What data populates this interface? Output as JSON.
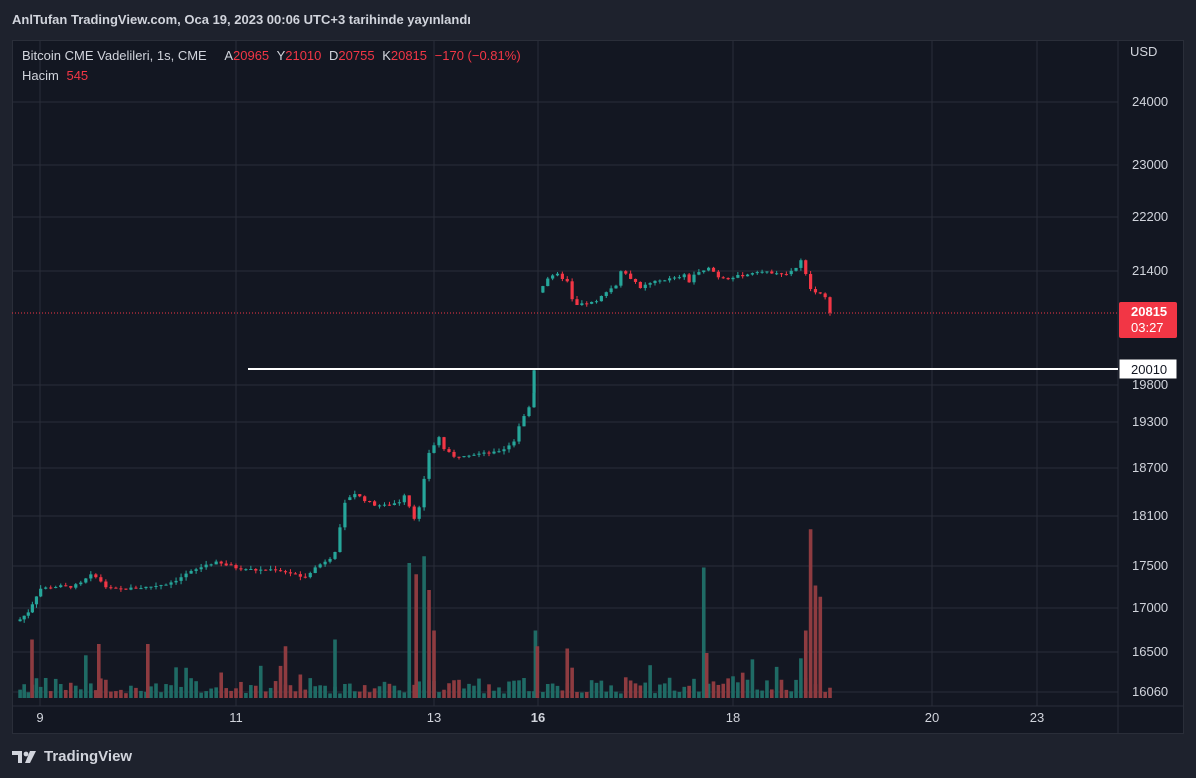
{
  "header": {
    "publisher_line": "AnlTufan TradingView.com, Oca 19, 2023 00:06 UTC+3 tarihinde yayınlandı"
  },
  "legend": {
    "symbol": "Bitcoin CME Vadelileri, 1s, CME",
    "open_label": "A",
    "open": "20965",
    "high_label": "Y",
    "high": "21010",
    "low_label": "D",
    "low": "20755",
    "close_label": "K",
    "close": "20815",
    "change": "−170 (−0.81%)",
    "volume_label": "Hacim",
    "volume": "545"
  },
  "price_axis": {
    "currency": "USD",
    "current_price_label": "20815",
    "countdown": "03:27",
    "level_label": "20010"
  },
  "colors": {
    "background": "#131722",
    "up": "#26a69a",
    "down": "#f23645",
    "up_volume": "#1f6b65",
    "down_volume": "#8e3b40",
    "grid": "#2a2e39",
    "level_line": "#ffffff"
  },
  "footer": {
    "brand": "TradingView",
    "logo_icon": "tradingview-logo-icon"
  },
  "chart_data": {
    "type": "candlestick",
    "price_ticks": [
      16060,
      16500,
      17000,
      17500,
      18100,
      18700,
      19300,
      19800,
      21400,
      22200,
      23000,
      24000
    ],
    "x_ticks": [
      {
        "label": "9",
        "x": 9
      },
      {
        "label": "11",
        "x": 11
      },
      {
        "label": "13",
        "x": 13
      },
      {
        "label": "16",
        "x": 16
      },
      {
        "label": "18",
        "x": 18
      },
      {
        "label": "20",
        "x": 20
      },
      {
        "label": "23",
        "x": 23
      }
    ],
    "horizontal_level": 20010,
    "last_price": 20815,
    "segments": [
      {
        "x_start": 8.7,
        "x_end": 10.9,
        "points": [
          [
            0,
            16850
          ],
          [
            0.05,
            16870
          ],
          [
            0.15,
            16950
          ],
          [
            0.3,
            17230
          ],
          [
            0.5,
            17260
          ],
          [
            0.6,
            17250
          ],
          [
            0.7,
            17280
          ],
          [
            0.75,
            17320
          ],
          [
            0.8,
            17390
          ],
          [
            0.88,
            17380
          ],
          [
            0.95,
            17260
          ],
          [
            1.05,
            17220
          ],
          [
            1.2,
            17230
          ],
          [
            1.4,
            17250
          ],
          [
            1.6,
            17290
          ],
          [
            1.7,
            17340
          ],
          [
            1.8,
            17410
          ],
          [
            1.9,
            17460
          ],
          [
            2.0,
            17520
          ],
          [
            2.1,
            17540
          ],
          [
            2.2,
            17510
          ]
        ]
      },
      {
        "x_start": 10.9,
        "x_end": 12.1,
        "points": [
          [
            0,
            17520
          ],
          [
            0.1,
            17480
          ],
          [
            0.3,
            17450
          ],
          [
            0.5,
            17460
          ],
          [
            0.6,
            17430
          ],
          [
            0.7,
            17400
          ],
          [
            0.75,
            17360
          ],
          [
            0.8,
            17380
          ],
          [
            0.9,
            17480
          ],
          [
            1.0,
            17560
          ],
          [
            1.05,
            17600
          ],
          [
            1.1,
            17680
          ],
          [
            1.15,
            17950
          ],
          [
            1.2,
            18250
          ]
        ]
      },
      {
        "x_start": 12.1,
        "x_end": 14.0,
        "points": [
          [
            0,
            18300
          ],
          [
            0.1,
            18380
          ],
          [
            0.2,
            18300
          ],
          [
            0.3,
            18240
          ],
          [
            0.4,
            18230
          ],
          [
            0.5,
            18260
          ],
          [
            0.55,
            18280
          ],
          [
            0.6,
            18370
          ],
          [
            0.7,
            18080
          ],
          [
            0.75,
            18200
          ],
          [
            0.8,
            18550
          ],
          [
            0.85,
            18900
          ],
          [
            0.95,
            19100
          ],
          [
            1.0,
            18950
          ],
          [
            1.1,
            18840
          ],
          [
            1.2,
            18870
          ],
          [
            1.3,
            18880
          ],
          [
            1.4,
            18890
          ],
          [
            1.5,
            18900
          ],
          [
            1.6,
            18950
          ],
          [
            1.7,
            19050
          ],
          [
            1.75,
            19250
          ],
          [
            1.85,
            19500
          ],
          [
            1.9,
            19700
          ],
          [
            1.95,
            20000
          ]
        ]
      },
      {
        "x_start": 16.0,
        "x_end": 19.0,
        "points": [
          [
            0,
            21100
          ],
          [
            0.1,
            21300
          ],
          [
            0.2,
            21350
          ],
          [
            0.3,
            21250
          ],
          [
            0.35,
            21000
          ],
          [
            0.4,
            20920
          ],
          [
            0.5,
            20950
          ],
          [
            0.6,
            20970
          ],
          [
            0.7,
            21120
          ],
          [
            0.8,
            21200
          ],
          [
            0.85,
            21400
          ],
          [
            0.9,
            21350
          ],
          [
            1.0,
            21250
          ],
          [
            1.05,
            21150
          ],
          [
            1.1,
            21200
          ],
          [
            1.2,
            21250
          ],
          [
            1.3,
            21280
          ],
          [
            1.4,
            21300
          ],
          [
            1.5,
            21340
          ],
          [
            1.55,
            21250
          ],
          [
            1.6,
            21350
          ],
          [
            1.7,
            21400
          ],
          [
            1.75,
            21460
          ],
          [
            1.85,
            21320
          ],
          [
            1.95,
            21300
          ],
          [
            2.05,
            21330
          ],
          [
            2.15,
            21350
          ],
          [
            2.25,
            21400
          ],
          [
            2.35,
            21380
          ],
          [
            2.45,
            21380
          ],
          [
            2.55,
            21360
          ],
          [
            2.65,
            21450
          ],
          [
            2.7,
            21550
          ],
          [
            2.75,
            21350
          ],
          [
            2.8,
            21150
          ],
          [
            2.85,
            21100
          ],
          [
            2.95,
            21050
          ],
          [
            3.0,
            20815
          ]
        ]
      }
    ],
    "volume_spikes": [
      {
        "x": 12.75,
        "v": 600,
        "dir": "up"
      },
      {
        "x": 12.82,
        "v": 550,
        "dir": "down"
      },
      {
        "x": 12.9,
        "v": 630,
        "dir": "up"
      },
      {
        "x": 12.95,
        "v": 480,
        "dir": "down"
      },
      {
        "x": 13.0,
        "v": 300,
        "dir": "down"
      },
      {
        "x": 14.7,
        "v": 300,
        "dir": "up"
      },
      {
        "x": 17.7,
        "v": 580,
        "dir": "up"
      },
      {
        "x": 17.73,
        "v": 200,
        "dir": "down"
      },
      {
        "x": 18.8,
        "v": 750,
        "dir": "down"
      },
      {
        "x": 18.85,
        "v": 500,
        "dir": "down"
      },
      {
        "x": 18.9,
        "v": 450,
        "dir": "down"
      },
      {
        "x": 18.75,
        "v": 300,
        "dir": "down"
      },
      {
        "x": 8.9,
        "v": 260,
        "dir": "down"
      },
      {
        "x": 9.6,
        "v": 240,
        "dir": "down"
      },
      {
        "x": 10.1,
        "v": 240,
        "dir": "down"
      },
      {
        "x": 11.5,
        "v": 230,
        "dir": "down"
      },
      {
        "x": 12.0,
        "v": 260,
        "dir": "up"
      },
      {
        "x": 15.7,
        "v": 230,
        "dir": "down"
      },
      {
        "x": 16.3,
        "v": 220,
        "dir": "down"
      }
    ]
  }
}
